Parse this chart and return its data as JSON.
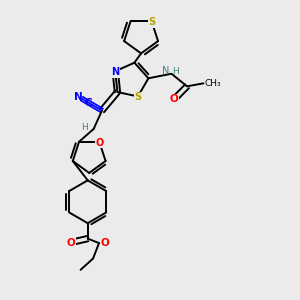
{
  "bg_color": "#ebebeb",
  "atom_colors": {
    "S": "#b8a000",
    "N": "#0000ff",
    "O": "#ff0000",
    "C": "#000000",
    "H": "#408080",
    "bond": "#000000"
  },
  "lw": 1.4
}
